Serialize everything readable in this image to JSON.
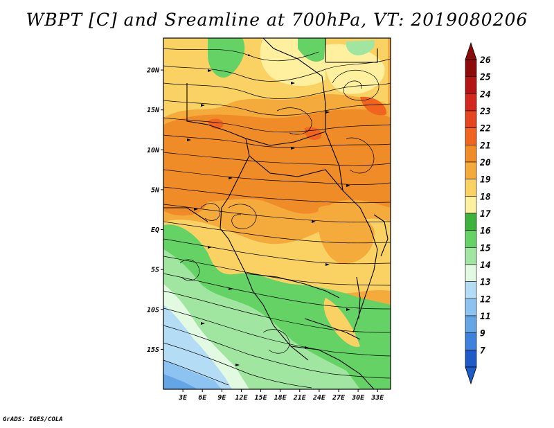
{
  "title": "WBPT [C] and Sreamline at 700hPa, VT: 2019080206",
  "credit": "GrADS: IGES/COLA",
  "map": {
    "lon_range": [
      0,
      35
    ],
    "lat_range": [
      -20,
      24
    ],
    "lon_ticks": [
      {
        "value": 3,
        "label": "3E"
      },
      {
        "value": 6,
        "label": "6E"
      },
      {
        "value": 9,
        "label": "9E"
      },
      {
        "value": 12,
        "label": "12E"
      },
      {
        "value": 15,
        "label": "15E"
      },
      {
        "value": 18,
        "label": "18E"
      },
      {
        "value": 21,
        "label": "21E"
      },
      {
        "value": 24,
        "label": "24E"
      },
      {
        "value": 27,
        "label": "27E"
      },
      {
        "value": 30,
        "label": "30E"
      },
      {
        "value": 33,
        "label": "33E"
      }
    ],
    "lat_ticks": [
      {
        "value": 20,
        "label": "20N"
      },
      {
        "value": 15,
        "label": "15N"
      },
      {
        "value": 10,
        "label": "10N"
      },
      {
        "value": 5,
        "label": "5N"
      },
      {
        "value": 0,
        "label": "EQ"
      },
      {
        "value": -5,
        "label": "5S"
      },
      {
        "value": -10,
        "label": "10S"
      },
      {
        "value": -15,
        "label": "15S"
      }
    ]
  },
  "colorbar": {
    "levels": [
      {
        "label": "26",
        "color": "#8c0a0a"
      },
      {
        "label": "25",
        "color": "#b41414"
      },
      {
        "label": "24",
        "color": "#d2281e"
      },
      {
        "label": "23",
        "color": "#e6461e"
      },
      {
        "label": "22",
        "color": "#f0641e"
      },
      {
        "label": "21",
        "color": "#f08c28"
      },
      {
        "label": "20",
        "color": "#f5aa3c"
      },
      {
        "label": "19",
        "color": "#fad264"
      },
      {
        "label": "18",
        "color": "#fff0a0"
      },
      {
        "label": "17",
        "color": "#3cb43c"
      },
      {
        "label": "16",
        "color": "#64d264"
      },
      {
        "label": "15",
        "color": "#a0e6a0"
      },
      {
        "label": "14",
        "color": "#e1fae1"
      },
      {
        "label": "13",
        "color": "#b4dcf5"
      },
      {
        "label": "12",
        "color": "#8cc3f0"
      },
      {
        "label": "11",
        "color": "#64a5e6"
      },
      {
        "label": "9",
        "color": "#3c82dc"
      },
      {
        "label": "7",
        "color": "#1e5ac8"
      }
    ],
    "bottom_color": "#1e5ac8"
  }
}
